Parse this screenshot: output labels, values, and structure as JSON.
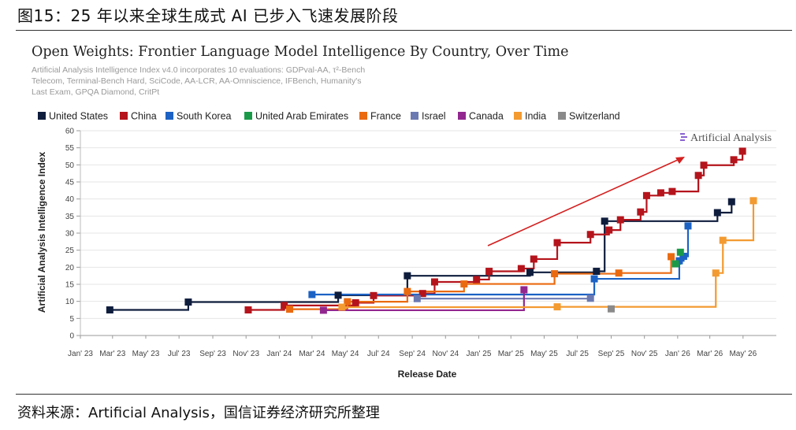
{
  "figure": {
    "title": "图15：25 年以来全球生成式 AI 已步入飞速发展阶段",
    "source": "资料来源：Artificial Analysis，国信证券经济研究所整理"
  },
  "colors": {
    "United States": "#0f1d3d",
    "China": "#b5141c",
    "South Korea": "#1c62c4",
    "United Arab Emirates": "#1a9a48",
    "France": "#ea6a10",
    "Israel": "#6b79b2",
    "Canada": "#92278f",
    "India": "#f39a30",
    "Switzerland": "#8a8a8a",
    "trend_arrow": "#d42020"
  },
  "chart_data": {
    "type": "line",
    "step": true,
    "title": "Open Weights: Frontier Language Model Intelligence By Country, Over Time",
    "subtitle": "Artificial Analysis Intelligence Index v4.0 incorporates 10 evaluations: GDPval-AA, τ²-Bench Telecom, Terminal-Bench Hard, SciCode, AA-LCR, AA-Omniscience, IFBench, Humanity's Last Exam, GPQA Diamond, CritPt",
    "xlabel": "Release Date",
    "ylabel": "Artificial Analysis Intelligence Index",
    "watermark": "Artificial Analysis",
    "ylim": [
      0,
      60
    ],
    "yticks": [
      0,
      5,
      10,
      15,
      20,
      25,
      30,
      35,
      40,
      45,
      50,
      55,
      60
    ],
    "xlim": [
      "2023-01-01",
      "2026-07-01"
    ],
    "xticks": [
      "Jan' 23",
      "Mar' 23",
      "May' 23",
      "Jul' 23",
      "Sep' 23",
      "Nov' 23",
      "Jan' 24",
      "Mar' 24",
      "May' 24",
      "Jul' 24",
      "Sep' 24",
      "Nov' 24",
      "Jan' 25",
      "Mar' 25",
      "May' 25",
      "Jul' 25",
      "Sep' 25",
      "Nov' 25",
      "Jan' 26",
      "Mar' 26",
      "May' 26"
    ],
    "legend_position": "top",
    "grid": "horizontal",
    "annotation": "red trend arrow pointing up-right",
    "series": [
      {
        "name": "United States",
        "points": [
          [
            "2023-02-24",
            7.5
          ],
          [
            "2023-07-18",
            9.8
          ],
          [
            "2024-04-18",
            11.8
          ],
          [
            "2024-08-23",
            17.5
          ],
          [
            "2025-04-05",
            18.5
          ],
          [
            "2025-08-05",
            18.8
          ],
          [
            "2025-08-20",
            33.5
          ],
          [
            "2026-03-15",
            36.0
          ],
          [
            "2026-04-10",
            39.2
          ]
        ]
      },
      {
        "name": "China",
        "points": [
          [
            "2023-11-05",
            7.5
          ],
          [
            "2024-01-10",
            8.8
          ],
          [
            "2024-05-20",
            9.6
          ],
          [
            "2024-06-22",
            11.7
          ],
          [
            "2024-09-20",
            12.3
          ],
          [
            "2024-10-12",
            15.7
          ],
          [
            "2024-12-28",
            16.4
          ],
          [
            "2025-01-20",
            18.8
          ],
          [
            "2025-03-20",
            19.6
          ],
          [
            "2025-04-12",
            22.4
          ],
          [
            "2025-05-25",
            27.2
          ],
          [
            "2025-07-25",
            29.6
          ],
          [
            "2025-08-28",
            30.9
          ],
          [
            "2025-09-18",
            33.9
          ],
          [
            "2025-10-25",
            36.2
          ],
          [
            "2025-11-05",
            41.0
          ],
          [
            "2025-12-01",
            41.8
          ],
          [
            "2025-12-22",
            42.2
          ],
          [
            "2026-02-08",
            46.9
          ],
          [
            "2026-02-18",
            49.9
          ],
          [
            "2026-04-14",
            51.5
          ],
          [
            "2026-04-30",
            54.0
          ]
        ]
      },
      {
        "name": "South Korea",
        "points": [
          [
            "2024-03-01",
            12.0
          ],
          [
            "2025-08-01",
            16.6
          ],
          [
            "2026-01-04",
            21.9
          ],
          [
            "2026-01-12",
            23.2
          ],
          [
            "2026-01-20",
            32.1
          ]
        ]
      },
      {
        "name": "United Arab Emirates",
        "points": [
          [
            "2025-12-28",
            21.0
          ],
          [
            "2026-01-06",
            24.4
          ]
        ]
      },
      {
        "name": "France",
        "points": [
          [
            "2024-01-20",
            7.7
          ],
          [
            "2024-05-05",
            9.9
          ],
          [
            "2024-08-23",
            12.9
          ],
          [
            "2024-12-05",
            15.1
          ],
          [
            "2025-05-20",
            18.1
          ],
          [
            "2025-09-15",
            18.3
          ],
          [
            "2025-12-20",
            23.1
          ]
        ]
      },
      {
        "name": "Israel",
        "points": [
          [
            "2024-09-10",
            10.8
          ],
          [
            "2025-07-25",
            10.9
          ]
        ]
      },
      {
        "name": "Canada",
        "points": [
          [
            "2024-03-22",
            7.4
          ],
          [
            "2025-03-25",
            13.4
          ]
        ]
      },
      {
        "name": "India",
        "points": [
          [
            "2024-04-25",
            8.3
          ],
          [
            "2025-05-25",
            8.4
          ],
          [
            "2026-03-12",
            18.3
          ],
          [
            "2026-03-25",
            27.9
          ],
          [
            "2026-05-20",
            39.5
          ]
        ]
      },
      {
        "name": "Switzerland",
        "points": [
          [
            "2025-09-01",
            7.8
          ]
        ]
      }
    ]
  }
}
